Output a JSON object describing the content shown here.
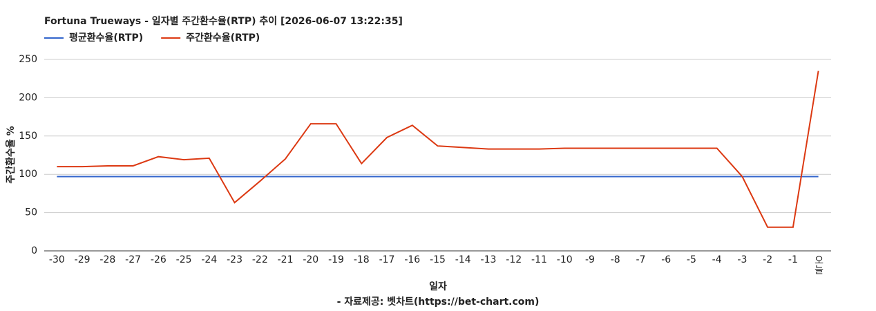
{
  "chart_data": {
    "type": "line",
    "title": "Fortuna Trueways - 일자별 주간환수율(RTP) 추이 [2026-06-07 13:22:35]",
    "x_label": "일자",
    "y_label": "주간환수율 %",
    "source": "- 자료제공: 벳차트(https://bet-chart.com)",
    "categories": [
      "-30",
      "-29",
      "-28",
      "-27",
      "-26",
      "-25",
      "-24",
      "-23",
      "-22",
      "-21",
      "-20",
      "-19",
      "-18",
      "-17",
      "-16",
      "-15",
      "-14",
      "-13",
      "-12",
      "-11",
      "-10",
      "-9",
      "-8",
      "-7",
      "-6",
      "-5",
      "-4",
      "-3",
      "-2",
      "-1",
      "오늘"
    ],
    "series": [
      {
        "name": "평균환수율(RTP)",
        "color": "#3366cc",
        "values": [
          97,
          97,
          97,
          97,
          97,
          97,
          97,
          97,
          97,
          97,
          97,
          97,
          97,
          97,
          97,
          97,
          97,
          97,
          97,
          97,
          97,
          97,
          97,
          97,
          97,
          97,
          97,
          97,
          97,
          97,
          97
        ]
      },
      {
        "name": "주간환수율(RTP)",
        "color": "#dc3912",
        "values": [
          110,
          110,
          111,
          111,
          123,
          119,
          121,
          63,
          91,
          120,
          166,
          166,
          114,
          148,
          164,
          137,
          135,
          133,
          133,
          133,
          134,
          134,
          134,
          134,
          134,
          134,
          134,
          97,
          31,
          31,
          235
        ]
      }
    ],
    "ylim": [
      0,
      250
    ],
    "yticks": [
      0,
      50,
      100,
      150,
      200,
      250
    ],
    "grid": true,
    "legend": "top-left"
  }
}
